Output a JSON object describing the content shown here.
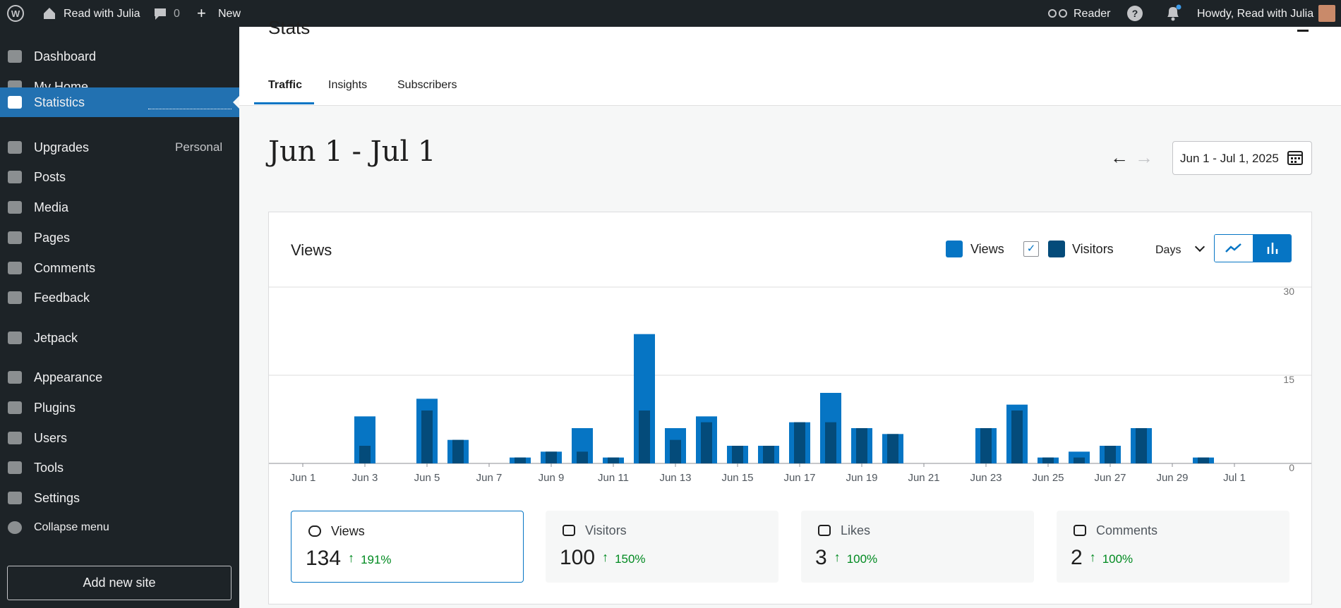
{
  "admin_bar": {
    "site": "Read with Julia",
    "comments": "0",
    "new": "New",
    "reader": "Reader",
    "howdy": "Howdy, Read with Julia"
  },
  "sidebar": {
    "menu": [
      "Dashboard",
      "My Home",
      "Statistics",
      "Upgrades",
      "Posts",
      "Media",
      "Pages",
      "Comments",
      "Feedback",
      "Jetpack",
      "Appearance",
      "Plugins",
      "Users",
      "Tools",
      "Settings",
      "Collapse menu"
    ],
    "upgrades_badge": "Personal",
    "add_site": "Add new site"
  },
  "header": {
    "title": "Stats",
    "tabs": [
      "Traffic",
      "Insights",
      "Subscribers"
    ]
  },
  "date_range": {
    "title": "Jun 1 - Jul 1",
    "picker": "Jun 1 - Jul 1, 2025"
  },
  "chart_data": {
    "type": "bar",
    "title": "Views",
    "interval": "Days",
    "categories": [
      "Jun 1",
      null,
      "Jun 3",
      null,
      "Jun 5",
      null,
      "Jun 7",
      null,
      "Jun 9",
      null,
      "Jun 11",
      null,
      "Jun 13",
      null,
      "Jun 15",
      null,
      "Jun 17",
      null,
      "Jun 19",
      null,
      "Jun 21",
      null,
      "Jun 23",
      null,
      "Jun 25",
      null,
      "Jun 27",
      null,
      "Jun 29",
      null,
      "Jul 1"
    ],
    "series": [
      {
        "name": "Views",
        "color": "#0675c4",
        "values": [
          0,
          0,
          8,
          0,
          11,
          4,
          0,
          1,
          2,
          6,
          1,
          22,
          6,
          8,
          3,
          3,
          7,
          12,
          6,
          5,
          0,
          0,
          6,
          10,
          1,
          2,
          3,
          6,
          0,
          1,
          0
        ]
      },
      {
        "name": "Visitors",
        "color": "#044b7a",
        "values": [
          0,
          0,
          3,
          0,
          9,
          4,
          0,
          1,
          2,
          2,
          1,
          9,
          4,
          7,
          3,
          3,
          7,
          7,
          6,
          5,
          0,
          0,
          6,
          9,
          1,
          1,
          3,
          6,
          0,
          1,
          0
        ]
      }
    ],
    "ylim": [
      0,
      30
    ],
    "yticks": [
      0,
      15,
      30
    ],
    "grid": true
  },
  "stats_cards": [
    {
      "label": "Views",
      "value": "134",
      "change": "191%"
    },
    {
      "label": "Visitors",
      "value": "100",
      "change": "150%"
    },
    {
      "label": "Likes",
      "value": "3",
      "change": "100%"
    },
    {
      "label": "Comments",
      "value": "2",
      "change": "100%"
    }
  ]
}
